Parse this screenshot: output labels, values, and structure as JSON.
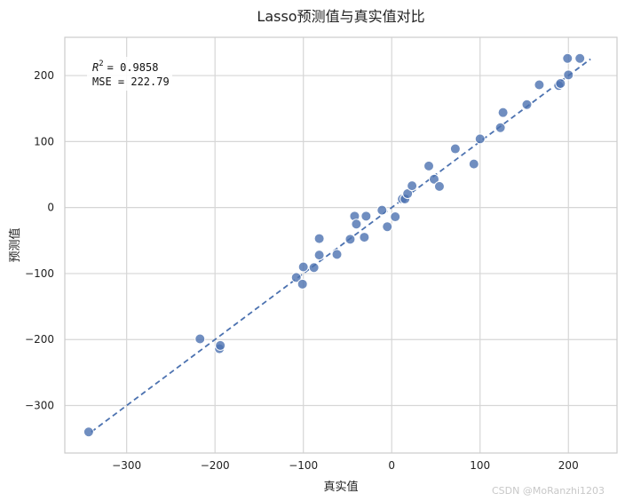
{
  "chart_data": {
    "type": "scatter",
    "title": "Lasso预测值与真实值对比",
    "xlabel": "真实值",
    "ylabel": "预测值",
    "xlim": [
      -370,
      255
    ],
    "ylim": [
      -372,
      258
    ],
    "xticks": [
      -300,
      -200,
      -100,
      0,
      100,
      200
    ],
    "yticks": [
      -300,
      -200,
      -100,
      0,
      100,
      200
    ],
    "xtick_labels": [
      "−300",
      "−200",
      "−100",
      "0",
      "100",
      "200"
    ],
    "ytick_labels": [
      "−300",
      "−200",
      "−100",
      "0",
      "100",
      "200"
    ],
    "grid": true,
    "point_color": "#4c72b0",
    "line_color": "#4c72b0",
    "reference_line": {
      "style": "dashed",
      "x": [
        -340,
        225
      ],
      "y": [
        -340,
        225
      ]
    },
    "annotation": {
      "r2": "= 0.9858",
      "r2_base": "R",
      "r2_sup": "2",
      "mse": "MSE = 222.79"
    },
    "x": [
      -343,
      -217,
      -195,
      -194,
      -108,
      -101,
      -100,
      -88,
      -82,
      -82,
      -62,
      -47,
      -42,
      -40,
      -31,
      -29,
      -11,
      -5,
      4,
      12,
      15,
      18,
      23,
      42,
      48,
      54,
      72,
      93,
      100,
      123,
      126,
      153,
      167,
      189,
      191,
      199,
      200,
      213
    ],
    "y": [
      -340,
      -199,
      -214,
      -209,
      -106,
      -116,
      -90,
      -91,
      -72,
      -47,
      -71,
      -48,
      -13,
      -25,
      -45,
      -13,
      -4,
      -29,
      -14,
      13,
      13,
      21,
      33,
      63,
      43,
      32,
      89,
      66,
      104,
      121,
      144,
      156,
      186,
      185,
      188,
      226,
      201,
      226
    ]
  },
  "watermark": "CSDN @MoRanzhi1203"
}
